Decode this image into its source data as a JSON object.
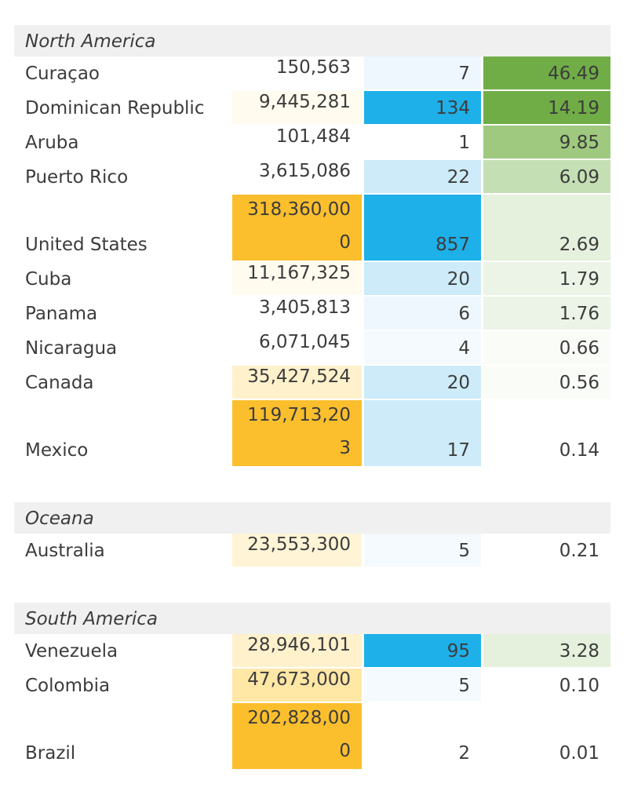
{
  "regions": [
    {
      "name": "North America",
      "rows": [
        {
          "country": "Curaçao",
          "population": "150,563",
          "count": "7",
          "rate": "46.49",
          "pop_bg": "#ffffff",
          "count_bg": "#eef7fd",
          "rate_bg": "#70ad47"
        },
        {
          "country": "Dominican Republic",
          "population": "9,445,281",
          "count": "134",
          "rate": "14.19",
          "pop_bg": "#fffbef",
          "count_bg": "#1eb0e8",
          "rate_bg": "#70ad47"
        },
        {
          "country": "Aruba",
          "population": "101,484",
          "count": "1",
          "rate": "9.85",
          "pop_bg": "#ffffff",
          "count_bg": "#ffffff",
          "rate_bg": "#9ec97e"
        },
        {
          "country": "Puerto Rico",
          "population": "3,615,086",
          "count": "22",
          "rate": "6.09",
          "pop_bg": "#ffffff",
          "count_bg": "#cdebf8",
          "rate_bg": "#c5dfb5"
        },
        {
          "country": "United States",
          "population": "318,360,000",
          "pop_display": "318,360,00\n0",
          "count": "857",
          "rate": "2.69",
          "pop_bg": "#fbbf2d",
          "count_bg": "#1eb0e8",
          "rate_bg": "#e5f0dd",
          "tall": true
        },
        {
          "country": "Cuba",
          "population": "11,167,325",
          "count": "20",
          "rate": "1.79",
          "pop_bg": "#fffbef",
          "count_bg": "#cdebf8",
          "rate_bg": "#ebf4e6"
        },
        {
          "country": "Panama",
          "population": "3,405,813",
          "count": "6",
          "rate": "1.76",
          "pop_bg": "#ffffff",
          "count_bg": "#eef7fd",
          "rate_bg": "#ebf4e6"
        },
        {
          "country": "Nicaragua",
          "population": "6,071,045",
          "count": "4",
          "rate": "0.66",
          "pop_bg": "#ffffff",
          "count_bg": "#f4fafe",
          "rate_bg": "#fafcf8"
        },
        {
          "country": "Canada",
          "population": "35,427,524",
          "count": "20",
          "rate": "0.56",
          "pop_bg": "#fff1cc",
          "count_bg": "#cdebf8",
          "rate_bg": "#fafcf8"
        },
        {
          "country": "Mexico",
          "population": "119,713,203",
          "pop_display": "119,713,20\n3",
          "count": "17",
          "rate": "0.14",
          "pop_bg": "#fbbf2d",
          "count_bg": "#cdebf8",
          "rate_bg": "#ffffff",
          "tall": true
        }
      ]
    },
    {
      "name": "Oceana",
      "rows": [
        {
          "country": "Australia",
          "population": "23,553,300",
          "count": "5",
          "rate": "0.21",
          "pop_bg": "#fff4d6",
          "count_bg": "#f4fafe",
          "rate_bg": "#ffffff"
        }
      ]
    },
    {
      "name": "South America",
      "rows": [
        {
          "country": "Venezuela",
          "population": "28,946,101",
          "count": "95",
          "rate": "3.28",
          "pop_bg": "#fff1cc",
          "count_bg": "#1eb0e8",
          "rate_bg": "#e5f0dd"
        },
        {
          "country": "Colombia",
          "population": "47,673,000",
          "count": "5",
          "rate": "0.10",
          "pop_bg": "#ffe7a6",
          "count_bg": "#f4fafe",
          "rate_bg": "#ffffff"
        },
        {
          "country": "Brazil",
          "population": "202,828,000",
          "pop_display": "202,828,00\n0",
          "count": "2",
          "rate": "0.01",
          "pop_bg": "#fbbf2d",
          "count_bg": "#ffffff",
          "rate_bg": "#ffffff",
          "tall": true
        }
      ]
    }
  ]
}
